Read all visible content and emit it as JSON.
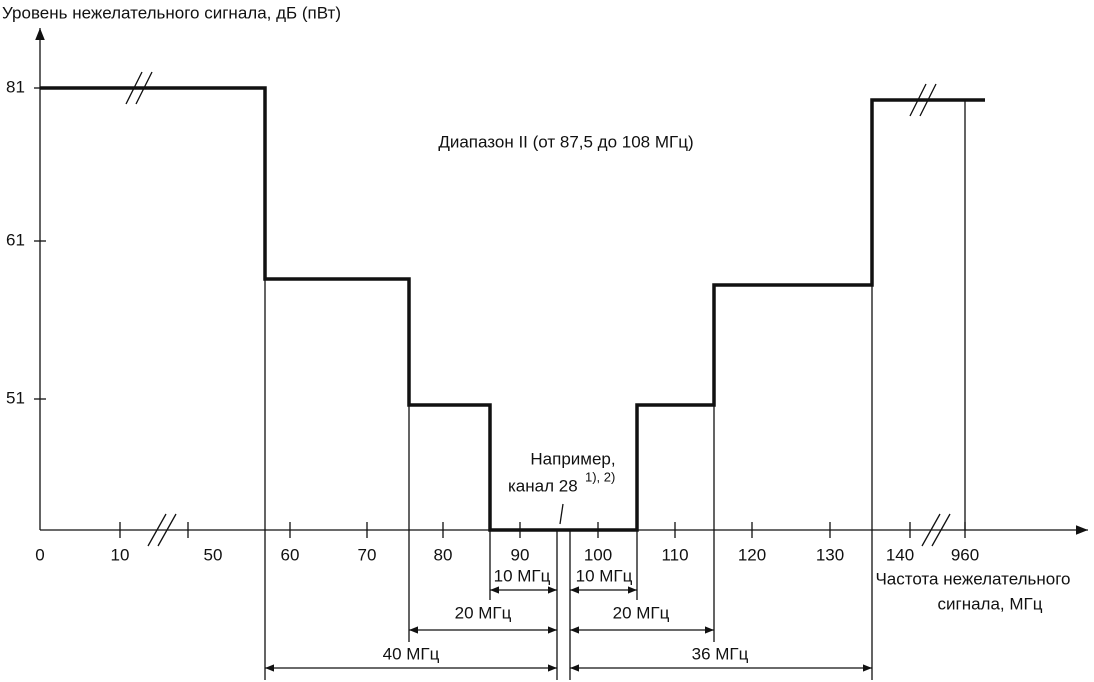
{
  "y_axis_label": "Уровень нежелательного сигнала, дБ (пВт)",
  "x_axis_label": [
    "Частота нежелательного",
    "сигнала, МГц"
  ],
  "y_ticks": [
    "81",
    "61",
    "51"
  ],
  "x_ticks": [
    "0",
    "10",
    "50",
    "60",
    "70",
    "80",
    "90",
    "100",
    "110",
    "120",
    "130",
    "140",
    "960"
  ],
  "band_label": "Диапазон II (от 87,5 до 108 МГц)",
  "annotation": {
    "lines": [
      "Например,",
      "канал 28"
    ],
    "superscript": "1), 2)"
  },
  "dimensions": [
    "10 МГц",
    "10 МГц",
    "20 МГц",
    "20 МГц",
    "40 МГц",
    "36 МГц"
  ]
}
